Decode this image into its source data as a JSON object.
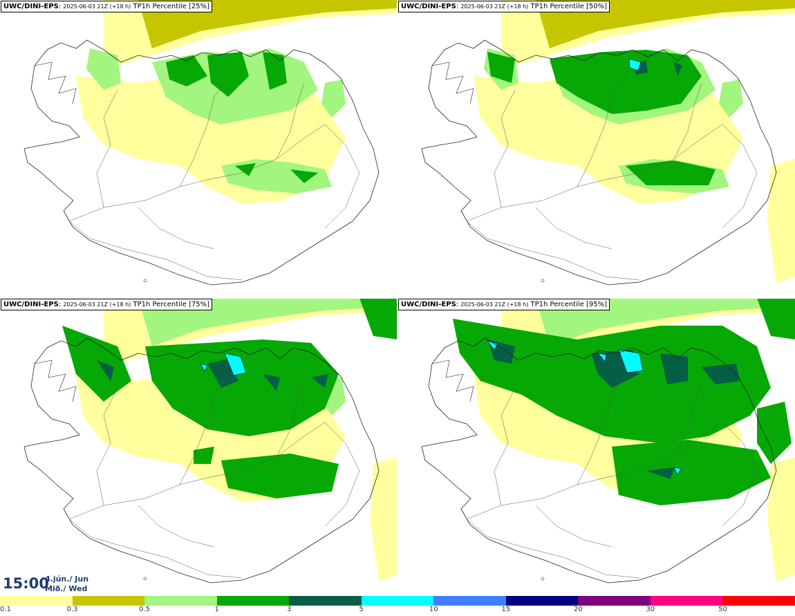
{
  "panels": [
    {
      "model": "UWC/DINI-EPS",
      "run": "2025-06-03 21Z (+18 h)",
      "field": "TP1h Percentile [25%]",
      "level": 0
    },
    {
      "model": "UWC/DINI-EPS",
      "run": "2025-06-03 21Z (+18 h)",
      "field": "TP1h Percentile [50%]",
      "level": 1
    },
    {
      "model": "UWC/DINI-EPS",
      "run": "2025-06-03 21Z (+18 h)",
      "field": "TP1h Percentile [75%]",
      "level": 2
    },
    {
      "model": "UWC/DINI-EPS",
      "run": "2025-06-03 21Z (+18 h)",
      "field": "TP1h Percentile [95%]",
      "level": 3
    }
  ],
  "valid_time": {
    "time": "15:00",
    "date_line1": "4.jún./ Jun",
    "date_line2": "Mið./ Wed"
  },
  "legend": {
    "colors": [
      "#ffff9e",
      "#c6c600",
      "#a2f57e",
      "#05a805",
      "#055f44",
      "#00ffff",
      "#3f7fff",
      "#000080",
      "#800080",
      "#ff0080",
      "#ff0000"
    ],
    "ticks": [
      "0.1",
      "0.3",
      "0.5",
      "1",
      "3",
      "5",
      "10",
      "15",
      "20",
      "30",
      "50"
    ]
  }
}
